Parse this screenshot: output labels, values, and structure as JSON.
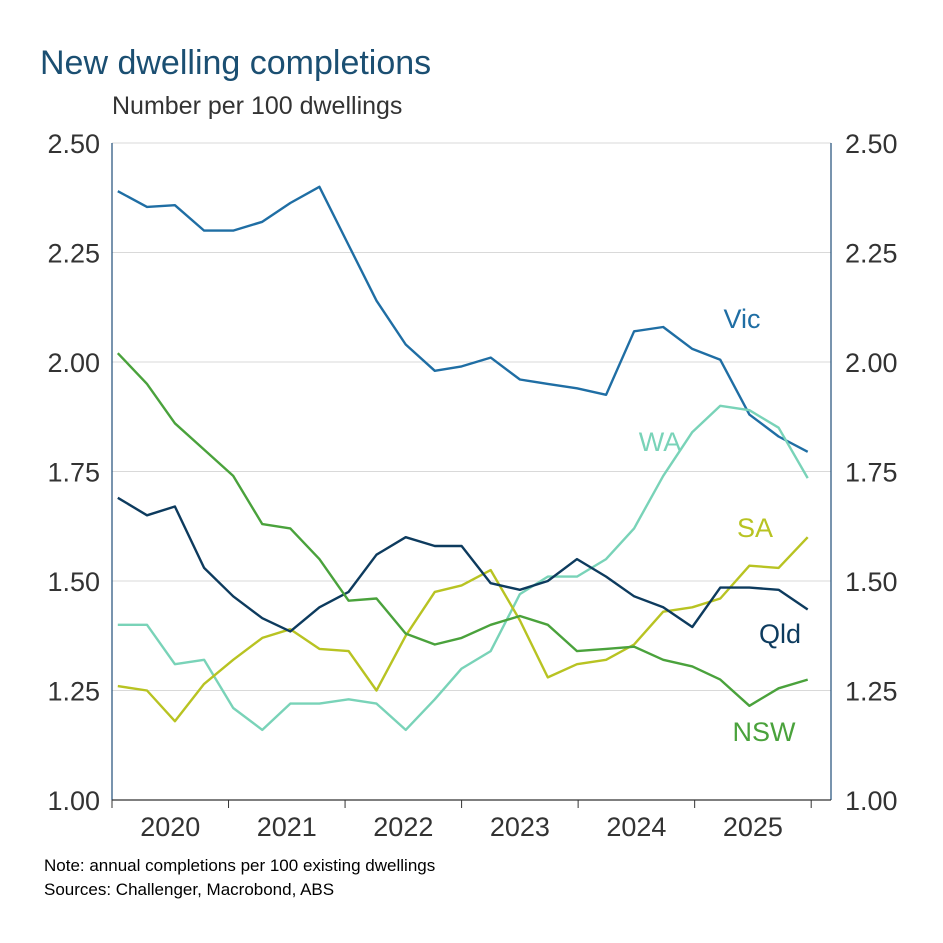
{
  "chart_data": {
    "type": "line",
    "title": "New dwelling completions",
    "subtitle": "Number per 100 dwellings",
    "notes": [
      "Note: annual completions per 100 existing dwellings",
      "Sources: Challenger, Macrobond, ABS"
    ],
    "x": [
      2020.05,
      2020.3,
      2020.54,
      2020.79,
      2021.04,
      2021.29,
      2021.53,
      2021.78,
      2022.03,
      2022.27,
      2022.52,
      2022.77,
      2023.0,
      2023.25,
      2023.5,
      2023.74,
      2023.99,
      2024.24,
      2024.48,
      2024.73,
      2024.98,
      2025.22,
      2025.47,
      2025.72,
      2025.97
    ],
    "xlim": [
      2020,
      2026.17
    ],
    "xticks": [
      {
        "value": 2020.5,
        "label": "2020"
      },
      {
        "value": 2021.5,
        "label": "2021"
      },
      {
        "value": 2022.5,
        "label": "2022"
      },
      {
        "value": 2023.5,
        "label": "2023"
      },
      {
        "value": 2024.5,
        "label": "2024"
      },
      {
        "value": 2025.5,
        "label": "2025"
      }
    ],
    "ylim": [
      1.0,
      2.5
    ],
    "yticks": [
      {
        "value": 1.0,
        "label": "1.00"
      },
      {
        "value": 1.25,
        "label": "1.25"
      },
      {
        "value": 1.5,
        "label": "1.50"
      },
      {
        "value": 1.75,
        "label": "1.75"
      },
      {
        "value": 2.0,
        "label": "2.00"
      },
      {
        "value": 2.25,
        "label": "2.25"
      },
      {
        "value": 2.5,
        "label": "2.50"
      }
    ],
    "grid": true,
    "series": [
      {
        "name": "Vic",
        "color": "#1f6ea4",
        "values": [
          2.39,
          2.354,
          2.358,
          2.3,
          2.3,
          2.32,
          2.363,
          2.4,
          2.267,
          2.14,
          2.04,
          1.98,
          1.99,
          2.01,
          1.96,
          1.95,
          1.94,
          1.925,
          2.07,
          2.08,
          2.03,
          2.005,
          1.88,
          1.83,
          1.795
        ]
      },
      {
        "name": "WA",
        "color": "#79d3b8",
        "values": [
          1.4,
          1.4,
          1.31,
          1.32,
          1.21,
          1.16,
          1.22,
          1.22,
          1.23,
          1.22,
          1.16,
          1.23,
          1.3,
          1.34,
          1.47,
          1.51,
          1.51,
          1.55,
          1.62,
          1.74,
          1.84,
          1.9,
          1.89,
          1.85,
          1.735
        ]
      },
      {
        "name": "SA",
        "color": "#b8c322",
        "values": [
          1.26,
          1.25,
          1.18,
          1.265,
          1.32,
          1.37,
          1.39,
          1.345,
          1.34,
          1.25,
          1.375,
          1.475,
          1.49,
          1.525,
          1.41,
          1.28,
          1.31,
          1.32,
          1.355,
          1.43,
          1.44,
          1.46,
          1.535,
          1.53,
          1.6
        ]
      },
      {
        "name": "Qld",
        "color": "#0d3b5e",
        "values": [
          1.69,
          1.65,
          1.67,
          1.53,
          1.465,
          1.415,
          1.385,
          1.44,
          1.475,
          1.56,
          1.6,
          1.58,
          1.58,
          1.495,
          1.48,
          1.5,
          1.55,
          1.51,
          1.465,
          1.44,
          1.395,
          1.485,
          1.485,
          1.48,
          1.435
        ]
      },
      {
        "name": "NSW",
        "color": "#4aa23c",
        "values": [
          2.02,
          1.95,
          1.86,
          1.8,
          1.74,
          1.63,
          1.62,
          1.55,
          1.455,
          1.46,
          1.38,
          1.355,
          1.37,
          1.4,
          1.42,
          1.4,
          1.34,
          1.345,
          1.35,
          1.32,
          1.305,
          1.275,
          1.215,
          1.255,
          1.275
        ]
      }
    ]
  }
}
